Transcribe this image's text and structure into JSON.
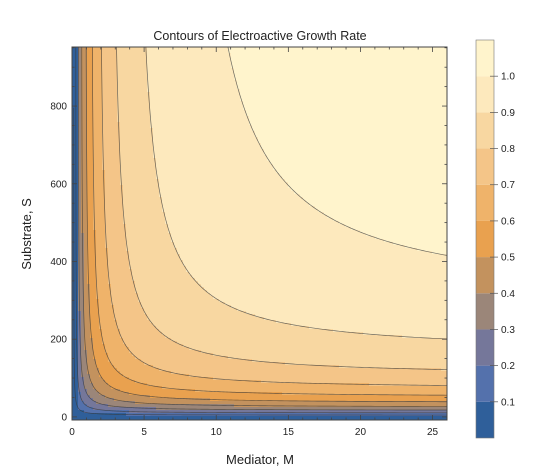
{
  "chart_data": {
    "type": "contour",
    "title": "Contours of Electroactive Growth Rate",
    "xlabel": "Mediator, M",
    "ylabel": "Substrate, S",
    "xlim": [
      0,
      26
    ],
    "ylim": [
      0,
      960
    ],
    "x_ticks": [
      0,
      5,
      10,
      15,
      20,
      25
    ],
    "y_ticks": [
      0,
      200,
      400,
      600,
      800
    ],
    "model": "rate = (M/(Km+M)) * (S/(Ks+S)) * scale",
    "model_params": {
      "Km": 1.2,
      "Ks": 48,
      "scale": 1.167
    },
    "contour_levels": [
      0.1,
      0.2,
      0.3,
      0.4,
      0.5,
      0.6,
      0.7,
      0.8,
      0.9,
      1.0
    ],
    "colorbar_ticks": [
      "0.1",
      "0.2",
      "0.3",
      "0.4",
      "0.5",
      "0.6",
      "0.7",
      "0.8",
      "0.9",
      "1.0"
    ],
    "band_colors": [
      "#2f5f9a",
      "#5471ac",
      "#75779a",
      "#9b8679",
      "#c3925e",
      "#e9a14f",
      "#efb36a",
      "#f4c588",
      "#f8d7a1",
      "#fde9bd",
      "#fff4cc"
    ],
    "grid": false,
    "legend": "colorbar-right"
  }
}
